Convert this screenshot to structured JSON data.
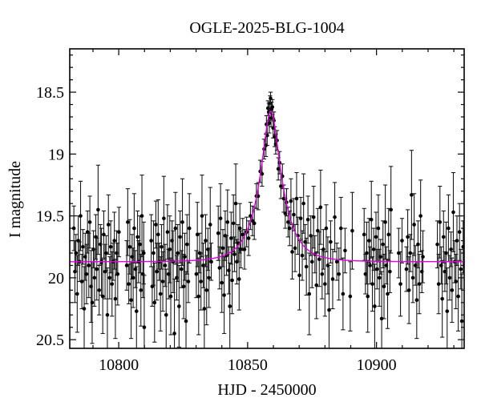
{
  "chart_data": {
    "type": "scatter",
    "title": "OGLE-2025-BLG-1004",
    "xlabel": "HJD - 2450000",
    "ylabel": "I magnitude",
    "x_range": [
      10781,
      10934
    ],
    "y_range_mag": [
      18.15,
      20.57
    ],
    "y_axis_inverted": true,
    "grid": false,
    "x_major_ticks": [
      10800,
      10850,
      10900
    ],
    "x_tick_labels": [
      "10800",
      "10850",
      "10900"
    ],
    "x_minor_tick_step": 10,
    "y_major_ticks": [
      18.5,
      19.0,
      19.5,
      20.0,
      20.5
    ],
    "y_tick_labels": [
      "18.5",
      "19",
      "19.5",
      "20",
      "20.5"
    ],
    "y_minor_tick_step": 0.1,
    "colors": {
      "background": "#ffffff",
      "frame": "#000000",
      "data_points": "#000000",
      "error_bars": "#1a1a1a",
      "model_curve": "#e000e0"
    },
    "model": {
      "type": "paczynski_microlensing",
      "t0": 10859.0,
      "tE": 8.5,
      "u0": 0.34,
      "baseline_mag": 19.87,
      "peak_mag": 18.65
    },
    "points": [
      [
        10782.6,
        19.6,
        0.18
      ],
      [
        10783.0,
        19.95,
        0.25
      ],
      [
        10783.4,
        19.8,
        0.15
      ],
      [
        10783.9,
        20.13,
        0.31
      ],
      [
        10784.3,
        19.7,
        0.2
      ],
      [
        10784.8,
        19.87,
        0.16
      ],
      [
        10785.2,
        19.5,
        0.28
      ],
      [
        10785.7,
        20.03,
        0.22
      ],
      [
        10786.1,
        19.75,
        0.14
      ],
      [
        10786.6,
        20.25,
        0.34
      ],
      [
        10787.0,
        19.83,
        0.19
      ],
      [
        10787.5,
        19.97,
        0.24
      ],
      [
        10787.9,
        19.63,
        0.17
      ],
      [
        10788.4,
        19.9,
        0.26
      ],
      [
        10788.8,
        19.55,
        0.21
      ],
      [
        10789.3,
        20.07,
        0.29
      ],
      [
        10789.7,
        20.2,
        0.33
      ],
      [
        10790.2,
        19.77,
        0.15
      ],
      [
        10790.6,
        20.0,
        0.23
      ],
      [
        10791.1,
        19.67,
        0.18
      ],
      [
        10791.5,
        19.93,
        0.25
      ],
      [
        10792.0,
        19.45,
        0.36
      ],
      [
        10792.4,
        20.1,
        0.2
      ],
      [
        10792.9,
        19.73,
        0.16
      ],
      [
        10793.3,
        19.87,
        0.27
      ],
      [
        10793.8,
        20.15,
        0.3
      ],
      [
        10794.2,
        19.65,
        0.19
      ],
      [
        10794.7,
        19.95,
        0.22
      ],
      [
        10795.1,
        19.8,
        0.14
      ],
      [
        10795.6,
        20.3,
        0.38
      ],
      [
        10796.0,
        19.57,
        0.24
      ],
      [
        10796.5,
        20.0,
        0.17
      ],
      [
        10796.9,
        19.75,
        0.21
      ],
      [
        10797.4,
        20.05,
        0.26
      ],
      [
        10797.8,
        19.87,
        0.15
      ],
      [
        10798.3,
        19.7,
        0.23
      ],
      [
        10798.7,
        20.17,
        0.32
      ],
      [
        10799.2,
        19.8,
        0.18
      ],
      [
        10799.6,
        19.97,
        0.25
      ],
      [
        10800.1,
        19.63,
        0.2
      ],
      [
        10803.1,
        19.9,
        0.2
      ],
      [
        10803.5,
        19.55,
        0.27
      ],
      [
        10803.9,
        20.05,
        0.16
      ],
      [
        10804.3,
        19.75,
        0.22
      ],
      [
        10804.8,
        20.18,
        0.31
      ],
      [
        10805.2,
        19.83,
        0.18
      ],
      [
        10805.6,
        20.0,
        0.24
      ],
      [
        10806.0,
        19.6,
        0.28
      ],
      [
        10806.5,
        19.93,
        0.15
      ],
      [
        10806.9,
        20.27,
        0.36
      ],
      [
        10807.3,
        19.67,
        0.21
      ],
      [
        10807.7,
        19.87,
        0.17
      ],
      [
        10808.2,
        19.73,
        0.23
      ],
      [
        10808.6,
        20.1,
        0.29
      ],
      [
        10809.0,
        19.5,
        0.33
      ],
      [
        10809.4,
        19.97,
        0.19
      ],
      [
        10809.7,
        19.8,
        0.25
      ],
      [
        10809.9,
        20.4,
        0.42
      ],
      [
        10812.6,
        19.7,
        0.21
      ],
      [
        10813.0,
        20.07,
        0.16
      ],
      [
        10813.5,
        19.8,
        0.26
      ],
      [
        10813.9,
        20.2,
        0.32
      ],
      [
        10814.4,
        19.57,
        0.19
      ],
      [
        10814.8,
        19.95,
        0.23
      ],
      [
        10815.3,
        19.65,
        0.28
      ],
      [
        10815.7,
        19.87,
        0.15
      ],
      [
        10816.2,
        20.13,
        0.3
      ],
      [
        10816.6,
        19.75,
        0.18
      ],
      [
        10817.1,
        20.03,
        0.24
      ],
      [
        10817.5,
        19.52,
        0.34
      ],
      [
        10818.0,
        19.9,
        0.17
      ],
      [
        10818.4,
        20.3,
        0.37
      ],
      [
        10818.9,
        19.63,
        0.22
      ],
      [
        10819.3,
        19.97,
        0.2
      ],
      [
        10819.8,
        19.77,
        0.27
      ],
      [
        10820.2,
        20.15,
        0.31
      ],
      [
        10820.7,
        19.7,
        0.16
      ],
      [
        10821.1,
        19.87,
        0.25
      ],
      [
        10821.6,
        20.45,
        0.44
      ],
      [
        10822.0,
        19.6,
        0.29
      ],
      [
        10822.5,
        20.0,
        0.18
      ],
      [
        10822.9,
        19.8,
        0.23
      ],
      [
        10823.4,
        20.23,
        0.33
      ],
      [
        10823.8,
        19.67,
        0.21
      ],
      [
        10824.3,
        19.93,
        0.15
      ],
      [
        10824.7,
        19.55,
        0.35
      ],
      [
        10825.2,
        20.07,
        0.26
      ],
      [
        10825.6,
        19.83,
        0.19
      ],
      [
        10826.1,
        20.35,
        0.4
      ],
      [
        10826.5,
        19.73,
        0.24
      ],
      [
        10827.0,
        20.03,
        0.17
      ],
      [
        10827.4,
        19.6,
        0.28
      ],
      [
        10830.1,
        19.97,
        0.19
      ],
      [
        10830.5,
        19.65,
        0.26
      ],
      [
        10831.0,
        20.15,
        0.31
      ],
      [
        10831.4,
        19.8,
        0.16
      ],
      [
        10831.9,
        20.03,
        0.23
      ],
      [
        10832.3,
        19.5,
        0.33
      ],
      [
        10832.8,
        19.9,
        0.18
      ],
      [
        10833.2,
        20.25,
        0.36
      ],
      [
        10833.7,
        19.7,
        0.21
      ],
      [
        10834.1,
        20.1,
        0.28
      ],
      [
        10834.6,
        19.77,
        0.17
      ],
      [
        10835.0,
        20.0,
        0.24
      ],
      [
        10835.5,
        19.57,
        0.3
      ],
      [
        10835.9,
        19.87,
        0.15
      ],
      [
        10838.6,
        19.64,
        0.22
      ],
      [
        10839.1,
        19.92,
        0.17
      ],
      [
        10839.5,
        19.52,
        0.28
      ],
      [
        10840.0,
        20.04,
        0.24
      ],
      [
        10840.4,
        19.76,
        0.15
      ],
      [
        10840.9,
        20.14,
        0.31
      ],
      [
        10841.3,
        19.66,
        0.2
      ],
      [
        10841.8,
        19.82,
        0.16
      ],
      [
        10842.2,
        19.55,
        0.26
      ],
      [
        10842.7,
        19.94,
        0.19
      ],
      [
        10843.1,
        20.23,
        0.35
      ],
      [
        10843.6,
        19.68,
        0.21
      ],
      [
        10844.0,
        20.02,
        0.27
      ],
      [
        10844.5,
        19.56,
        0.23
      ],
      [
        10844.9,
        19.81,
        0.14
      ],
      [
        10845.4,
        19.4,
        0.32
      ],
      [
        10845.8,
        19.87,
        0.18
      ],
      [
        10846.3,
        19.72,
        0.15
      ],
      [
        10846.7,
        20.01,
        0.25
      ],
      [
        10847.0,
        19.6,
        0.2
      ],
      [
        10847.4,
        19.77,
        0.15
      ],
      [
        10848.1,
        19.65,
        0.13
      ],
      [
        10848.8,
        19.77,
        0.16
      ],
      [
        10849.6,
        19.63,
        0.12
      ],
      [
        10850.4,
        19.68,
        0.14
      ],
      [
        10851.1,
        19.5,
        0.11
      ],
      [
        10851.9,
        19.54,
        0.12
      ],
      [
        10852.6,
        19.56,
        0.13
      ],
      [
        10853.4,
        19.34,
        0.1
      ],
      [
        10854.1,
        19.34,
        0.11
      ],
      [
        10854.9,
        19.14,
        0.09
      ],
      [
        10855.6,
        19.16,
        0.1
      ],
      [
        10856.4,
        18.96,
        0.08
      ],
      [
        10857.1,
        18.93,
        0.09
      ],
      [
        10857.3,
        18.76,
        0.07
      ],
      [
        10857.6,
        18.85,
        0.08
      ],
      [
        10857.9,
        18.63,
        0.06
      ],
      [
        10858.2,
        18.66,
        0.07
      ],
      [
        10858.4,
        18.75,
        0.08
      ],
      [
        10858.7,
        18.59,
        0.06
      ],
      [
        10858.9,
        18.55,
        0.05
      ],
      [
        10859.1,
        18.71,
        0.07
      ],
      [
        10859.3,
        18.64,
        0.06
      ],
      [
        10859.6,
        18.62,
        0.06
      ],
      [
        10859.9,
        18.79,
        0.08
      ],
      [
        10860.2,
        18.73,
        0.07
      ],
      [
        10860.5,
        18.86,
        0.08
      ],
      [
        10860.9,
        18.92,
        0.08
      ],
      [
        10861.4,
        18.89,
        0.08
      ],
      [
        10861.9,
        19.12,
        0.09
      ],
      [
        10862.4,
        19.07,
        0.09
      ],
      [
        10862.9,
        19.26,
        0.1
      ],
      [
        10863.5,
        19.18,
        0.1
      ],
      [
        10864.0,
        19.36,
        0.11
      ],
      [
        10864.6,
        19.48,
        0.12
      ],
      [
        10865.1,
        19.39,
        0.11
      ],
      [
        10865.7,
        19.55,
        0.12
      ],
      [
        10866.3,
        19.6,
        0.14
      ],
      [
        10866.8,
        19.38,
        0.18
      ],
      [
        10867.3,
        19.79,
        0.22
      ],
      [
        10867.9,
        19.49,
        0.13
      ],
      [
        10868.4,
        19.76,
        0.19
      ],
      [
        10869.0,
        19.36,
        0.21
      ],
      [
        10869.5,
        19.66,
        0.15
      ],
      [
        10870.1,
        19.98,
        0.28
      ],
      [
        10870.6,
        19.52,
        0.17
      ],
      [
        10871.2,
        19.82,
        0.2
      ],
      [
        10871.7,
        19.4,
        0.24
      ],
      [
        10872.3,
        19.71,
        0.14
      ],
      [
        10872.8,
        19.91,
        0.23
      ],
      [
        10873.4,
        19.53,
        0.19
      ],
      [
        10873.9,
        20.13,
        0.33
      ],
      [
        10874.5,
        19.66,
        0.16
      ],
      [
        10875.0,
        19.87,
        0.21
      ],
      [
        10875.6,
        19.51,
        0.25
      ],
      [
        10876.1,
        19.81,
        0.15
      ],
      [
        10876.7,
        20.06,
        0.27
      ],
      [
        10877.2,
        19.62,
        0.18
      ],
      [
        10877.8,
        19.85,
        0.22
      ],
      [
        10878.3,
        19.43,
        0.3
      ],
      [
        10878.9,
        19.97,
        0.2
      ],
      [
        10879.4,
        19.77,
        0.16
      ],
      [
        10880.0,
        20.05,
        0.26
      ],
      [
        10880.5,
        19.6,
        0.19
      ],
      [
        10881.1,
        19.9,
        0.23
      ],
      [
        10881.6,
        20.26,
        0.36
      ],
      [
        10882.2,
        19.71,
        0.17
      ],
      [
        10883.0,
        20.01,
        0.24
      ],
      [
        10883.8,
        19.51,
        0.28
      ],
      [
        10884.6,
        19.87,
        0.15
      ],
      [
        10885.4,
        19.97,
        0.21
      ],
      [
        10886.2,
        19.6,
        0.25
      ],
      [
        10887.0,
        20.13,
        0.29
      ],
      [
        10887.8,
        19.78,
        0.18
      ],
      [
        10889.8,
        20.15,
        0.28
      ],
      [
        10890.6,
        19.62,
        0.31
      ],
      [
        10895.2,
        19.65,
        0.21
      ],
      [
        10895.7,
        19.97,
        0.16
      ],
      [
        10896.2,
        19.8,
        0.25
      ],
      [
        10896.6,
        20.15,
        0.29
      ],
      [
        10897.1,
        19.7,
        0.18
      ],
      [
        10897.5,
        19.9,
        0.15
      ],
      [
        10898.0,
        19.53,
        0.31
      ],
      [
        10898.4,
        20.05,
        0.22
      ],
      [
        10898.9,
        19.77,
        0.17
      ],
      [
        10899.3,
        20.23,
        0.34
      ],
      [
        10899.8,
        19.67,
        0.2
      ],
      [
        10900.2,
        19.93,
        0.16
      ],
      [
        10900.7,
        19.6,
        0.27
      ],
      [
        10901.1,
        20.0,
        0.23
      ],
      [
        10901.6,
        19.83,
        0.14
      ],
      [
        10902.0,
        20.33,
        0.38
      ],
      [
        10902.5,
        19.73,
        0.19
      ],
      [
        10902.9,
        20.07,
        0.26
      ],
      [
        10903.4,
        19.55,
        0.3
      ],
      [
        10903.8,
        19.9,
        0.15
      ],
      [
        10904.3,
        20.13,
        0.28
      ],
      [
        10904.7,
        19.65,
        0.21
      ],
      [
        10905.2,
        19.95,
        0.17
      ],
      [
        10905.6,
        19.45,
        0.35
      ],
      [
        10908.6,
        19.8,
        0.2
      ],
      [
        10909.3,
        20.05,
        0.26
      ],
      [
        10909.9,
        19.7,
        0.18
      ],
      [
        10911.6,
        19.93,
        0.18
      ],
      [
        10912.1,
        19.67,
        0.22
      ],
      [
        10912.6,
        20.1,
        0.27
      ],
      [
        10913.1,
        19.8,
        0.15
      ],
      [
        10913.6,
        19.33,
        0.36
      ],
      [
        10914.1,
        20.0,
        0.2
      ],
      [
        10914.6,
        19.57,
        0.25
      ],
      [
        10915.1,
        19.9,
        0.16
      ],
      [
        10915.6,
        20.18,
        0.31
      ],
      [
        10916.1,
        19.73,
        0.19
      ],
      [
        10916.6,
        20.05,
        0.24
      ],
      [
        10917.1,
        19.5,
        0.29
      ],
      [
        10917.6,
        19.95,
        0.17
      ],
      [
        10918.0,
        19.83,
        0.21
      ],
      [
        10923.6,
        19.73,
        0.19
      ],
      [
        10924.1,
        20.05,
        0.24
      ],
      [
        10924.6,
        19.55,
        0.29
      ],
      [
        10925.1,
        19.9,
        0.15
      ],
      [
        10925.5,
        20.17,
        0.31
      ],
      [
        10926.0,
        19.67,
        0.21
      ],
      [
        10926.5,
        19.95,
        0.16
      ],
      [
        10927.0,
        19.8,
        0.25
      ],
      [
        10927.4,
        20.27,
        0.35
      ],
      [
        10927.9,
        19.6,
        0.27
      ],
      [
        10928.4,
        20.0,
        0.18
      ],
      [
        10928.9,
        19.77,
        0.14
      ],
      [
        10929.3,
        20.1,
        0.26
      ],
      [
        10929.8,
        19.47,
        0.32
      ],
      [
        10930.3,
        19.87,
        0.17
      ],
      [
        10930.8,
        20.03,
        0.22
      ],
      [
        10931.2,
        19.7,
        0.2
      ],
      [
        10931.7,
        20.15,
        0.28
      ],
      [
        10932.2,
        19.63,
        0.23
      ],
      [
        10932.7,
        19.93,
        0.16
      ],
      [
        10933.1,
        20.35,
        0.38
      ],
      [
        10933.6,
        19.75,
        0.21
      ]
    ]
  }
}
